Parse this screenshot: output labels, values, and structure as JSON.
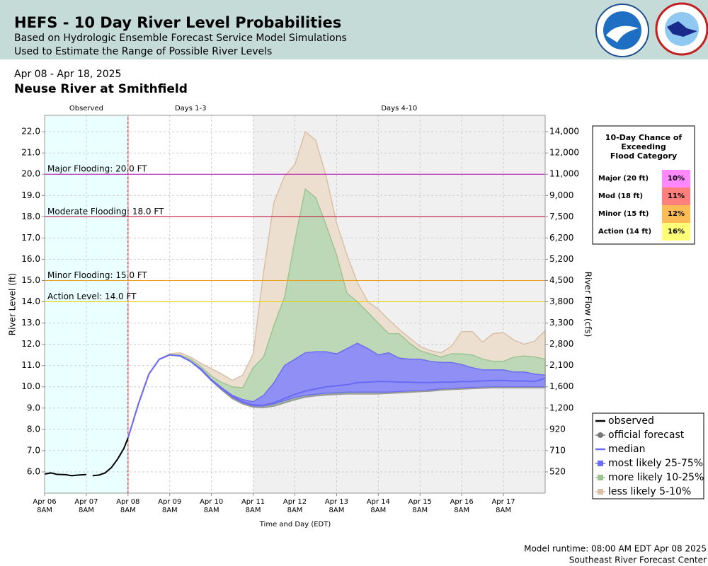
{
  "header": {
    "title": "HEFS - 10 Day River Level Probabilities",
    "subtitle1": "Based on Hydrologic Ensemble Forecast Service Model Simulations",
    "subtitle2": "Used to Estimate the Range of Possible River Levels"
  },
  "chart_data": {
    "type": "ensemble",
    "date_range": "Apr 08 - Apr 18, 2025",
    "title": "Neuse River at Smithfield",
    "xlabel": "Time and Day (EDT)",
    "ylabel": "River Level (ft)",
    "y2label": "River Flow (cfs)",
    "xlim": [
      0,
      12
    ],
    "ylim": [
      5,
      22.77
    ],
    "xticks": [
      {
        "value": 0,
        "label": "Apr 06",
        "sublabel": "8AM"
      },
      {
        "value": 1,
        "label": "Apr 07",
        "sublabel": "8AM"
      },
      {
        "value": 2,
        "label": "Apr 08",
        "sublabel": "8AM"
      },
      {
        "value": 3,
        "label": "Apr 09",
        "sublabel": "8AM"
      },
      {
        "value": 4,
        "label": "Apr 10",
        "sublabel": "8AM"
      },
      {
        "value": 5,
        "label": "Apr 11",
        "sublabel": "8AM"
      },
      {
        "value": 6,
        "label": "Apr 12",
        "sublabel": "8AM"
      },
      {
        "value": 7,
        "label": "Apr 13",
        "sublabel": "8AM"
      },
      {
        "value": 8,
        "label": "Apr 14",
        "sublabel": "8AM"
      },
      {
        "value": 9,
        "label": "Apr 15",
        "sublabel": "8AM"
      },
      {
        "value": 10,
        "label": "Apr 16",
        "sublabel": "8AM"
      },
      {
        "value": 11,
        "label": "Apr 17",
        "sublabel": "8AM"
      }
    ],
    "yticks": [
      {
        "value": 6,
        "label": "6.0"
      },
      {
        "value": 7,
        "label": "7.0"
      },
      {
        "value": 8,
        "label": "8.0"
      },
      {
        "value": 9,
        "label": "9.0"
      },
      {
        "value": 10,
        "label": "10.0"
      },
      {
        "value": 11,
        "label": "11.0"
      },
      {
        "value": 12,
        "label": "12.0"
      },
      {
        "value": 13,
        "label": "13.0"
      },
      {
        "value": 14,
        "label": "14.0"
      },
      {
        "value": 15,
        "label": "15.0"
      },
      {
        "value": 16,
        "label": "16.0"
      },
      {
        "value": 17,
        "label": "17.0"
      },
      {
        "value": 18,
        "label": "18.0"
      },
      {
        "value": 19,
        "label": "19.0"
      },
      {
        "value": 20,
        "label": "20.0"
      },
      {
        "value": 21,
        "label": "21.0"
      },
      {
        "value": 22,
        "label": "22.0"
      }
    ],
    "y2_labels": [
      "520",
      "710",
      "920",
      "1,200",
      "1,600",
      "2,100",
      "2,800",
      "3,300",
      "3,800",
      "4,500",
      "5,200",
      "6,200",
      "7,500",
      "9,000",
      "11,000",
      "12,000",
      "14,000"
    ],
    "grid": true,
    "regions": [
      {
        "label": "Observed",
        "from": 0,
        "to": 2,
        "color": "#eaffff"
      },
      {
        "label": "Days 1-3",
        "from": 2,
        "to": 5
      },
      {
        "label": "Days 4-10",
        "from": 5,
        "to": 12,
        "color": "#f0f0f0"
      }
    ],
    "flood_levels": [
      {
        "label": "Major Flooding: 20.0 FT",
        "value": 20,
        "color": "#b000b0"
      },
      {
        "label": "Moderate Flooding: 18.0 FT",
        "value": 18,
        "color": "#c00030"
      },
      {
        "label": "Minor Flooding: 15.0 FT",
        "value": 15,
        "color": "#e8a020"
      },
      {
        "label": "Action Level: 14.0 FT",
        "value": 14,
        "color": "#e8d000"
      }
    ],
    "observed": {
      "name": "observed",
      "color": "#000000",
      "x": [
        0,
        0.15,
        0.3,
        0.5,
        0.65,
        0.8,
        0.95,
        1.0,
        1.05,
        1.15,
        1.3,
        1.45,
        1.6,
        1.75,
        1.9,
        2.0
      ],
      "values": [
        5.9,
        5.95,
        5.88,
        5.87,
        5.82,
        5.85,
        5.87,
        5.87,
        null,
        5.82,
        5.85,
        5.95,
        6.2,
        6.6,
        7.1,
        7.6
      ]
    },
    "forecast_x": [
      2,
      2.25,
      2.5,
      2.75,
      3,
      3.25,
      3.5,
      3.75,
      4,
      4.25,
      4.5,
      4.75,
      5,
      5.25,
      5.5,
      5.75,
      6,
      6.25,
      6.5,
      6.75,
      7,
      7.25,
      7.5,
      7.75,
      8,
      8.25,
      8.5,
      8.75,
      9,
      9.25,
      9.5,
      9.75,
      10,
      10.25,
      10.5,
      10.75,
      11,
      11.25,
      11.5,
      11.75,
      12
    ],
    "bands": [
      {
        "name": "less likely 5-10%",
        "color": "#eddfcf",
        "edge": "#d8c0a8",
        "low": [
          7.6,
          9.2,
          10.6,
          11.3,
          11.5,
          11.45,
          11.2,
          10.8,
          10.3,
          9.85,
          9.45,
          9.2,
          9.05,
          9.03,
          9.1,
          9.25,
          9.4,
          9.52,
          9.58,
          9.62,
          9.65,
          9.67,
          9.67,
          9.67,
          9.67,
          9.7,
          9.72,
          9.75,
          9.78,
          9.8,
          9.85,
          9.88,
          9.9,
          9.92,
          9.94,
          9.96,
          9.96,
          9.96,
          9.96,
          9.96,
          9.96
        ],
        "high": [
          7.6,
          9.2,
          10.6,
          11.3,
          11.55,
          11.6,
          11.4,
          11.1,
          10.85,
          10.6,
          10.3,
          10.55,
          11.55,
          15.4,
          18.7,
          19.9,
          20.45,
          22.0,
          21.6,
          19.9,
          17.7,
          16.2,
          14.9,
          14.0,
          13.65,
          13.15,
          12.7,
          12.3,
          11.9,
          11.7,
          11.6,
          11.9,
          12.6,
          12.6,
          12.1,
          12.5,
          12.55,
          12.2,
          12.0,
          12.15,
          12.65
        ]
      },
      {
        "name": "more likely 10-25%",
        "color": "#bdd8b6",
        "edge": "#9cc492",
        "low": [
          7.6,
          9.2,
          10.6,
          11.3,
          11.5,
          11.45,
          11.2,
          10.8,
          10.3,
          9.85,
          9.45,
          9.2,
          9.05,
          9.05,
          9.15,
          9.3,
          9.45,
          9.55,
          9.6,
          9.65,
          9.68,
          9.7,
          9.7,
          9.7,
          9.7,
          9.72,
          9.75,
          9.77,
          9.8,
          9.82,
          9.87,
          9.9,
          9.92,
          9.95,
          9.96,
          9.98,
          9.98,
          9.98,
          9.98,
          9.98,
          9.98
        ],
        "high": [
          7.6,
          9.2,
          10.6,
          11.3,
          11.5,
          11.5,
          11.3,
          10.95,
          10.5,
          10.2,
          10.0,
          9.95,
          10.9,
          11.4,
          12.9,
          14.2,
          16.9,
          19.3,
          18.9,
          17.6,
          16.2,
          14.4,
          14.0,
          13.5,
          13.0,
          12.5,
          12.5,
          12.05,
          11.7,
          11.55,
          11.4,
          11.55,
          11.55,
          11.5,
          11.3,
          11.2,
          11.2,
          11.4,
          11.45,
          11.4,
          11.3
        ]
      },
      {
        "name": "most likely 25-75%",
        "color": "#8f8ff6",
        "edge": "#6e6ef0",
        "low": [
          7.6,
          9.2,
          10.6,
          11.3,
          11.5,
          11.45,
          11.2,
          10.8,
          10.3,
          9.9,
          9.5,
          9.25,
          9.1,
          9.1,
          9.2,
          9.35,
          9.5,
          9.6,
          9.65,
          9.7,
          9.72,
          9.75,
          9.75,
          9.75,
          9.75,
          9.75,
          9.78,
          9.8,
          9.82,
          9.85,
          9.9,
          9.92,
          9.95,
          9.97,
          9.98,
          10.0,
          10.0,
          10.0,
          10.0,
          10.0,
          10.0
        ],
        "high": [
          7.6,
          9.2,
          10.6,
          11.3,
          11.5,
          11.45,
          11.2,
          10.85,
          10.35,
          9.95,
          9.6,
          9.4,
          9.3,
          9.6,
          10.2,
          11.0,
          11.3,
          11.6,
          11.65,
          11.65,
          11.55,
          11.8,
          12.05,
          11.8,
          11.5,
          11.6,
          11.35,
          11.3,
          11.3,
          11.2,
          11.15,
          11.15,
          11.05,
          10.9,
          10.8,
          10.8,
          10.8,
          10.7,
          10.7,
          10.6,
          10.55
        ]
      }
    ],
    "median": {
      "name": "median",
      "color": "#6a6af5",
      "values": [
        7.6,
        9.2,
        10.6,
        11.3,
        11.5,
        11.45,
        11.2,
        10.8,
        10.3,
        9.9,
        9.55,
        9.3,
        9.15,
        9.13,
        9.25,
        9.45,
        9.65,
        9.8,
        9.9,
        10.0,
        10.05,
        10.1,
        10.2,
        10.22,
        10.25,
        10.25,
        10.22,
        10.22,
        10.2,
        10.2,
        10.22,
        10.22,
        10.25,
        10.25,
        10.28,
        10.3,
        10.3,
        10.28,
        10.28,
        10.25,
        10.4
      ]
    },
    "legend": [
      {
        "name": "observed",
        "color": "#000000",
        "kind": "line"
      },
      {
        "name": "official forecast",
        "color": "#777777",
        "kind": "dot"
      },
      {
        "name": "median",
        "color": "#6a6af5",
        "kind": "line"
      },
      {
        "name": "most likely 25-75%",
        "color": "#6e6ef0",
        "kind": "box"
      },
      {
        "name": "more likely 10-25%",
        "color": "#9cc492",
        "kind": "box"
      },
      {
        "name": "less likely 5-10%",
        "color": "#d8c0a8",
        "kind": "box"
      }
    ],
    "flood_table": {
      "title": [
        "10-Day Chance of",
        "Exceeding",
        "Flood Category"
      ],
      "rows": [
        {
          "label": "Major (20 ft)",
          "value": 10,
          "value_label": "10%",
          "color": "#ff88ff"
        },
        {
          "label": "Mod (18 ft)",
          "value": 11,
          "value_label": "11%",
          "color": "#ff7f7f"
        },
        {
          "label": "Minor (15 ft)",
          "value": 12,
          "value_label": "12%",
          "color": "#ffbb55"
        },
        {
          "label": "Action (14 ft)",
          "value": 16,
          "value_label": "16%",
          "color": "#ffff77"
        }
      ]
    }
  },
  "footer": {
    "runtime": "Model runtime: 08:00 AM EDT Apr 08 2025",
    "center": "Southeast River Forecast Center"
  }
}
